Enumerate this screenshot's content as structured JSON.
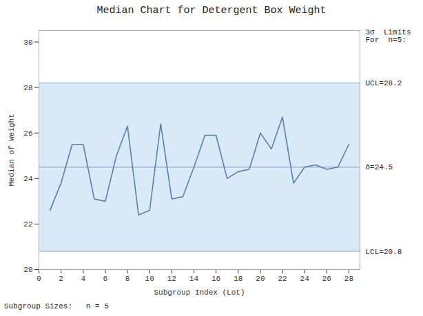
{
  "chart_data": {
    "type": "line",
    "title": "Median Chart for  Detergent  Box  Weight",
    "xlabel": "Subgroup Index (Lot)",
    "ylabel": "Median of Weight",
    "x": [
      1,
      2,
      3,
      4,
      5,
      6,
      7,
      8,
      9,
      10,
      11,
      12,
      13,
      14,
      15,
      16,
      17,
      18,
      19,
      20,
      21,
      22,
      23,
      24,
      25,
      26,
      27,
      28
    ],
    "values": [
      22.6,
      23.8,
      25.5,
      25.5,
      23.1,
      23.0,
      25.0,
      26.3,
      22.4,
      22.6,
      26.4,
      23.1,
      23.2,
      24.5,
      25.9,
      25.9,
      24.0,
      24.3,
      24.4,
      26.0,
      25.3,
      26.7,
      23.8,
      24.5,
      24.6,
      24.4,
      24.5,
      25.5
    ],
    "color": "#5a7fa8",
    "limits": [
      {
        "value": 28.2,
        "label": "UCL=28.2",
        "color": "#8a9ab5"
      },
      {
        "value": 20.8,
        "label": "LCL=20.8",
        "color": "#8a9ab5"
      },
      {
        "value": 24.5,
        "label": "ō=24.5",
        "color": "#8a9ab5"
      }
    ],
    "band": {
      "from": 20.8,
      "to": 28.2,
      "color": "#d8eaf7"
    },
    "xlim": [
      0,
      29
    ],
    "ylim": [
      20.0,
      30.5
    ],
    "xticks": [
      0,
      2,
      4,
      6,
      8,
      10,
      12,
      14,
      16,
      18,
      20,
      22,
      24,
      26,
      28
    ],
    "yticks": [
      20,
      22,
      24,
      26,
      28,
      30
    ],
    "grid": false,
    "annotation": "3σ  Limits\nFor  n=5:",
    "footer": "Subgroup Sizes:   n = 5"
  }
}
